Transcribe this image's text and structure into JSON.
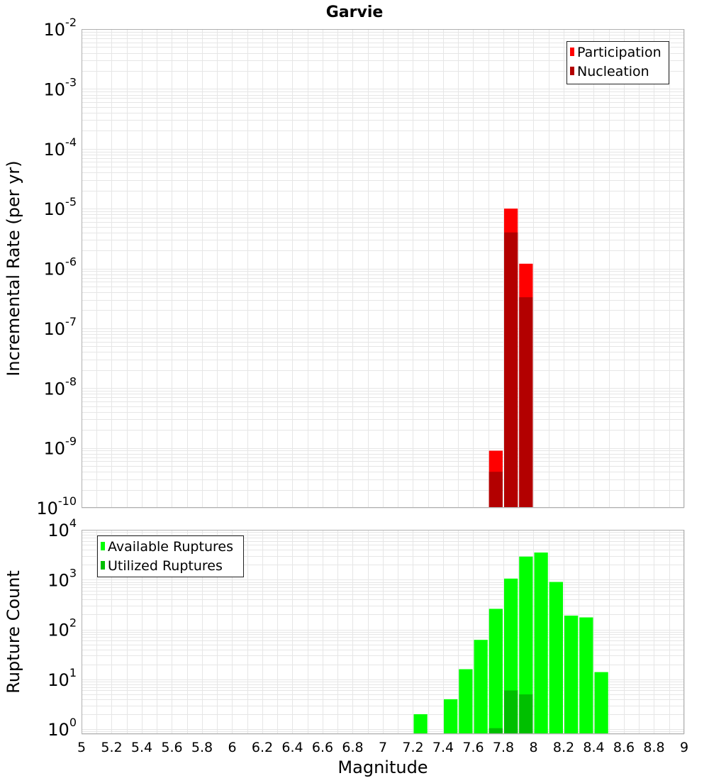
{
  "chart_data": [
    {
      "type": "bar",
      "title": "Garvie",
      "ylabel": "Incremental Rate (per yr)",
      "xlabel": "",
      "yscale": "log",
      "ylim": [
        1e-10,
        0.01
      ],
      "xlim": [
        5,
        9
      ],
      "y_ticks": [
        {
          "base": "10",
          "exp": "-2",
          "value": 0.01
        },
        {
          "base": "10",
          "exp": "-3",
          "value": 0.001
        },
        {
          "base": "10",
          "exp": "-4",
          "value": 0.0001
        },
        {
          "base": "10",
          "exp": "-5",
          "value": 1e-05
        },
        {
          "base": "10",
          "exp": "-6",
          "value": 1e-06
        },
        {
          "base": "10",
          "exp": "-7",
          "value": 1e-07
        },
        {
          "base": "10",
          "exp": "-8",
          "value": 1e-08
        },
        {
          "base": "10",
          "exp": "-9",
          "value": 1e-09
        },
        {
          "base": "10",
          "exp": "-10",
          "value": 1e-10
        }
      ],
      "grid": true,
      "legend_position": "top-right",
      "bar_width": 0.1,
      "series": [
        {
          "name": "Participation",
          "color": "#ff0000",
          "x": [
            7.75,
            7.85,
            7.95
          ],
          "values": [
            9e-10,
            1e-05,
            1.2e-06
          ]
        },
        {
          "name": "Nucleation",
          "color": "#b30000",
          "x": [
            7.75,
            7.85,
            7.95
          ],
          "values": [
            4e-10,
            4e-06,
            3.3e-07
          ]
        }
      ]
    },
    {
      "type": "bar",
      "title": "",
      "ylabel": "Rupture Count",
      "xlabel": "Magnitude",
      "yscale": "log",
      "ylim": [
        0.8,
        10000
      ],
      "xlim": [
        5,
        9
      ],
      "x_ticks": [
        "5",
        "5.2",
        "5.4",
        "5.6",
        "5.8",
        "6",
        "6.2",
        "6.4",
        "6.6",
        "6.8",
        "7",
        "7.2",
        "7.4",
        "7.6",
        "7.8",
        "8",
        "8.2",
        "8.4",
        "8.6",
        "8.8",
        "9"
      ],
      "y_ticks": [
        {
          "base": "10",
          "exp": "4",
          "value": 10000
        },
        {
          "base": "10",
          "exp": "3",
          "value": 1000
        },
        {
          "base": "10",
          "exp": "2",
          "value": 100
        },
        {
          "base": "10",
          "exp": "1",
          "value": 10
        },
        {
          "base": "10",
          "exp": "0",
          "value": 1
        }
      ],
      "grid": true,
      "legend_position": "top-left",
      "bar_width": 0.1,
      "series": [
        {
          "name": "Available Ruptures",
          "color": "#00ff00",
          "x": [
            7.25,
            7.45,
            7.55,
            7.65,
            7.75,
            7.85,
            7.95,
            8.05,
            8.15,
            8.25,
            8.35,
            8.45
          ],
          "values": [
            2,
            4,
            16,
            62,
            260,
            1050,
            2900,
            3500,
            900,
            190,
            175,
            14
          ]
        },
        {
          "name": "Utilized Ruptures",
          "color": "#00bf00",
          "x": [
            7.75,
            7.85,
            7.95
          ],
          "values": [
            1.05,
            6,
            5
          ]
        }
      ]
    }
  ]
}
